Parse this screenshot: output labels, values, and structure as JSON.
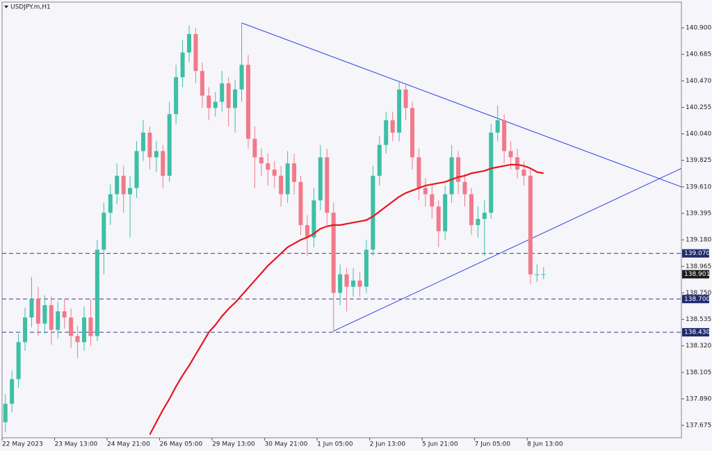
{
  "chart_data": {
    "type": "candlestick",
    "title": "USDJPY.m,H1",
    "up_color": "#3dbfa5",
    "down_color": "#f07a8a",
    "candles": [
      [
        137.7,
        137.93,
        137.62,
        137.85
      ],
      [
        137.85,
        138.12,
        137.78,
        138.05
      ],
      [
        138.05,
        138.42,
        137.98,
        138.35
      ],
      [
        138.35,
        138.63,
        138.28,
        138.55
      ],
      [
        138.55,
        138.88,
        138.47,
        138.7
      ],
      [
        138.7,
        138.8,
        138.4,
        138.5
      ],
      [
        138.5,
        138.73,
        138.42,
        138.65
      ],
      [
        138.65,
        138.72,
        138.33,
        138.45
      ],
      [
        138.45,
        138.68,
        138.38,
        138.6
      ],
      [
        138.6,
        138.7,
        138.46,
        138.55
      ],
      [
        138.55,
        138.62,
        138.3,
        138.4
      ],
      [
        138.4,
        138.48,
        138.22,
        138.35
      ],
      [
        138.35,
        138.64,
        138.28,
        138.55
      ],
      [
        138.55,
        138.7,
        138.32,
        138.4
      ],
      [
        138.4,
        139.18,
        138.36,
        139.1
      ],
      [
        139.1,
        139.48,
        138.9,
        139.4
      ],
      [
        139.4,
        139.63,
        139.3,
        139.55
      ],
      [
        139.55,
        139.8,
        139.47,
        139.7
      ],
      [
        139.7,
        139.78,
        139.4,
        139.55
      ],
      [
        139.55,
        139.7,
        139.2,
        139.6
      ],
      [
        139.6,
        139.98,
        139.52,
        139.9
      ],
      [
        139.9,
        140.15,
        139.82,
        140.05
      ],
      [
        140.05,
        140.1,
        139.75,
        139.85
      ],
      [
        139.85,
        139.98,
        139.73,
        139.9
      ],
      [
        139.9,
        139.95,
        139.6,
        139.7
      ],
      [
        139.7,
        140.3,
        139.65,
        140.2
      ],
      [
        140.2,
        140.6,
        140.12,
        140.5
      ],
      [
        140.5,
        140.8,
        140.42,
        140.7
      ],
      [
        140.7,
        140.92,
        140.62,
        140.85
      ],
      [
        140.85,
        140.9,
        140.45,
        140.55
      ],
      [
        140.55,
        140.62,
        140.25,
        140.35
      ],
      [
        140.35,
        140.42,
        140.15,
        140.25
      ],
      [
        140.25,
        140.38,
        140.18,
        140.3
      ],
      [
        140.3,
        140.55,
        140.22,
        140.45
      ],
      [
        140.45,
        140.5,
        140.1,
        140.25
      ],
      [
        140.25,
        140.48,
        140.05,
        140.4
      ],
      [
        140.4,
        140.94,
        140.3,
        140.6
      ],
      [
        140.6,
        140.68,
        139.92,
        140.0
      ],
      [
        140.0,
        140.1,
        139.6,
        139.85
      ],
      [
        139.85,
        139.92,
        139.7,
        139.8
      ],
      [
        139.8,
        139.88,
        139.62,
        139.75
      ],
      [
        139.75,
        139.82,
        139.6,
        139.7
      ],
      [
        139.7,
        139.78,
        139.45,
        139.55
      ],
      [
        139.55,
        139.9,
        139.48,
        139.8
      ],
      [
        139.8,
        139.88,
        139.55,
        139.65
      ],
      [
        139.65,
        139.7,
        139.22,
        139.3
      ],
      [
        139.3,
        139.38,
        139.05,
        139.2
      ],
      [
        139.2,
        139.6,
        139.12,
        139.5
      ],
      [
        139.5,
        139.95,
        139.42,
        139.85
      ],
      [
        139.85,
        139.92,
        139.3,
        139.4
      ],
      [
        139.4,
        139.48,
        138.43,
        138.75
      ],
      [
        138.75,
        138.98,
        138.65,
        138.9
      ],
      [
        138.9,
        138.95,
        138.6,
        138.8
      ],
      [
        138.8,
        138.95,
        138.72,
        138.85
      ],
      [
        138.85,
        138.92,
        138.72,
        138.8
      ],
      [
        138.8,
        139.18,
        138.75,
        139.1
      ],
      [
        139.1,
        139.78,
        139.05,
        139.7
      ],
      [
        139.7,
        140.02,
        139.62,
        139.95
      ],
      [
        139.95,
        140.22,
        139.88,
        140.15
      ],
      [
        140.15,
        140.22,
        139.98,
        140.05
      ],
      [
        140.05,
        140.47,
        139.98,
        140.4
      ],
      [
        140.4,
        140.45,
        140.15,
        140.25
      ],
      [
        140.25,
        140.3,
        139.75,
        139.85
      ],
      [
        139.85,
        139.92,
        139.5,
        139.6
      ],
      [
        139.6,
        139.68,
        139.45,
        139.55
      ],
      [
        139.55,
        139.62,
        139.35,
        139.45
      ],
      [
        139.45,
        139.5,
        139.12,
        139.25
      ],
      [
        139.25,
        139.62,
        139.18,
        139.55
      ],
      [
        139.55,
        139.95,
        139.48,
        139.85
      ],
      [
        139.85,
        139.9,
        139.55,
        139.65
      ],
      [
        139.65,
        139.72,
        139.45,
        139.55
      ],
      [
        139.55,
        139.6,
        139.22,
        139.3
      ],
      [
        139.3,
        139.45,
        139.2,
        139.35
      ],
      [
        139.35,
        139.5,
        139.05,
        139.4
      ],
      [
        139.4,
        140.12,
        139.35,
        140.05
      ],
      [
        140.05,
        140.27,
        139.98,
        140.15
      ],
      [
        140.15,
        140.2,
        139.8,
        139.9
      ],
      [
        139.9,
        139.98,
        139.75,
        139.85
      ],
      [
        139.85,
        139.92,
        139.68,
        139.75
      ],
      [
        139.75,
        139.82,
        139.62,
        139.7
      ],
      [
        139.7,
        139.75,
        138.82,
        138.9
      ],
      [
        138.9,
        138.98,
        138.84,
        138.9
      ],
      [
        138.9,
        138.96,
        138.86,
        138.901
      ]
    ],
    "moving_average": {
      "color": "#e8141c",
      "values": [
        null,
        null,
        null,
        null,
        null,
        null,
        null,
        null,
        null,
        null,
        null,
        null,
        null,
        null,
        null,
        null,
        null,
        null,
        null,
        null,
        null,
        null,
        137.6,
        137.7,
        137.8,
        137.89,
        137.99,
        138.08,
        138.16,
        138.25,
        138.34,
        138.43,
        138.49,
        138.56,
        138.62,
        138.67,
        138.73,
        138.79,
        138.85,
        138.91,
        138.97,
        139.02,
        139.07,
        139.12,
        139.15,
        139.18,
        139.2,
        139.23,
        139.27,
        139.29,
        139.3,
        139.3,
        139.31,
        139.32,
        139.33,
        139.34,
        139.37,
        139.41,
        139.45,
        139.49,
        139.53,
        139.56,
        139.58,
        139.6,
        139.62,
        139.63,
        139.64,
        139.65,
        139.67,
        139.69,
        139.7,
        139.72,
        139.73,
        139.74,
        139.76,
        139.77,
        139.78,
        139.79,
        139.79,
        139.78,
        139.76,
        139.73,
        139.72
      ]
    },
    "trendlines": {
      "color": "#3344dd",
      "lines": [
        {
          "x": [
            36.5,
            103.5
          ],
          "y": [
            140.94,
            139.61
          ]
        },
        {
          "x": [
            50.5,
            103.5
          ],
          "y": [
            138.44,
            139.76
          ]
        }
      ]
    },
    "hlines": {
      "color": "#3a3a8a",
      "label_bg": "#1e2a6e",
      "levels": [
        {
          "value": 139.07,
          "label": "139.070"
        },
        {
          "value": 138.7,
          "label": "138.700"
        },
        {
          "value": 138.43,
          "label": "138.430"
        }
      ]
    },
    "last_price_bg": "#1a1a1a",
    "ylim": [
      137.574,
      141.109
    ],
    "yticks": [
      {
        "value": 140.9,
        "label": "140.900"
      },
      140.685,
      {
        "value": 140.47,
        "label": "140.470"
      },
      140.255,
      {
        "value": 140.04,
        "label": "140.040"
      },
      139.825,
      {
        "value": 139.61,
        "label": "139.610"
      },
      139.395,
      {
        "value": 139.18,
        "label": "139.180"
      },
      138.965,
      {
        "value": 138.75,
        "label": "138.750"
      },
      138.535,
      {
        "value": 138.32,
        "label": "138.320"
      },
      138.105,
      {
        "value": 137.89,
        "label": "137.890"
      },
      137.675
    ],
    "xlim": [
      0,
      103.5
    ],
    "xticks": [
      {
        "value": 0,
        "label": "22 May 2023"
      },
      {
        "value": 8,
        "label": "23 May 13:00"
      },
      {
        "value": 16,
        "label": "24 May 21:00"
      },
      {
        "value": 24,
        "label": "26 May 05:00"
      },
      {
        "value": 32,
        "label": "29 May 13:00"
      },
      {
        "value": 40,
        "label": "30 May 21:00"
      },
      {
        "value": 48,
        "label": "1 Jun 05:00"
      },
      {
        "value": 56,
        "label": "2 Jun 13:00"
      },
      {
        "value": 64,
        "label": "5 Jun 21:00"
      },
      {
        "value": 72,
        "label": "7 Jun 05:00"
      },
      {
        "value": 80,
        "label": "8 Jun 13:00"
      }
    ]
  }
}
